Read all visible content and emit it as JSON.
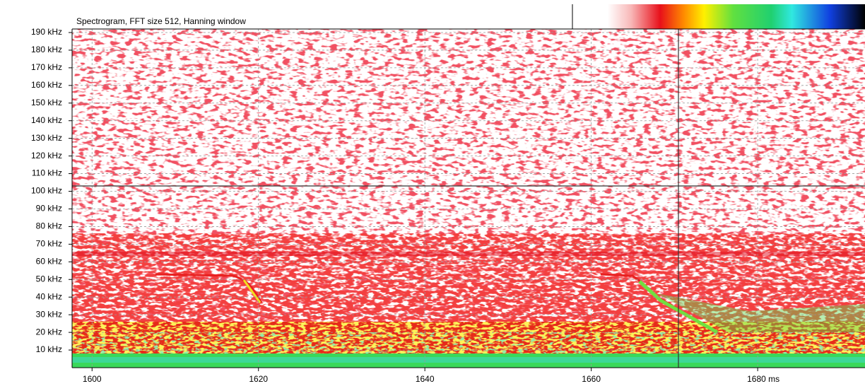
{
  "chart_data": {
    "type": "spectrogram",
    "title": "Spectrogram, FFT size 512, Hanning window",
    "xlim": [
      1597.6,
      1692.9
    ],
    "ylim": [
      0,
      192
    ],
    "xticks": [
      1600,
      1620,
      1640,
      1660,
      {
        "value": 1680,
        "label": "1680 ms"
      }
    ],
    "yticks": [
      {
        "value": 10,
        "label": "10 kHz"
      },
      {
        "value": 20,
        "label": "20 kHz"
      },
      {
        "value": 30,
        "label": "30 kHz"
      },
      {
        "value": 40,
        "label": "40 kHz"
      },
      {
        "value": 50,
        "label": "50 kHz"
      },
      {
        "value": 60,
        "label": "60 kHz"
      },
      {
        "value": 70,
        "label": "70 kHz"
      },
      {
        "value": 80,
        "label": "80 kHz"
      },
      {
        "value": 90,
        "label": "90 kHz"
      },
      {
        "value": 100,
        "label": "100 kHz"
      },
      {
        "value": 110,
        "label": "110 kHz"
      },
      {
        "value": 120,
        "label": "120 kHz"
      },
      {
        "value": 130,
        "label": "130 kHz"
      },
      {
        "value": 140,
        "label": "140 kHz"
      },
      {
        "value": 150,
        "label": "150 kHz"
      },
      {
        "value": 160,
        "label": "160 kHz"
      },
      {
        "value": 170,
        "label": "170 kHz"
      },
      {
        "value": 180,
        "label": "180 kHz"
      },
      {
        "value": 190,
        "label": "190 kHz"
      }
    ],
    "grid": true
  }
}
